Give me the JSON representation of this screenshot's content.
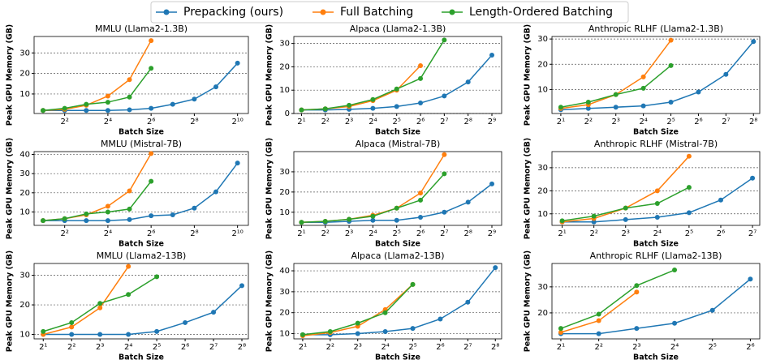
{
  "chart_data": [
    {
      "type": "line",
      "title": "MMLU (Llama2-1.3B)",
      "xlabel": "Batch Size",
      "ylabel": "Peak GPU Memory (GB)",
      "log_x": true,
      "log_base": 2,
      "grid": true,
      "xlim": [
        1.5,
        1450
      ],
      "ylim": [
        0.5,
        38
      ],
      "xticks": [
        {
          "value": 4,
          "label": "2²"
        },
        {
          "value": 16,
          "label": "2⁴"
        },
        {
          "value": 64,
          "label": "2⁶"
        },
        {
          "value": 256,
          "label": "2⁸"
        },
        {
          "value": 1024,
          "label": "2¹⁰"
        }
      ],
      "yticks": [
        10,
        20,
        30
      ],
      "series": [
        {
          "name": "Prepacking (ours)",
          "color": "#1f77b4",
          "x": [
            2,
            4,
            8,
            16,
            32,
            64,
            128,
            256,
            512,
            1024
          ],
          "values": [
            2,
            2,
            2,
            2,
            2.3,
            3,
            5,
            7.5,
            13.5,
            25
          ]
        },
        {
          "name": "Full Batching",
          "color": "#ff7f0e",
          "x": [
            2,
            4,
            8,
            16,
            32,
            64
          ],
          "values": [
            2,
            2.5,
            4.5,
            9,
            17,
            36
          ]
        },
        {
          "name": "Length-Ordered Batching",
          "color": "#2ca02c",
          "x": [
            2,
            4,
            8,
            16,
            32,
            64
          ],
          "values": [
            2,
            3,
            5,
            6,
            8.5,
            22.5
          ]
        }
      ]
    },
    {
      "type": "line",
      "title": "Alpaca (Llama2-1.3B)",
      "xlabel": "Batch Size",
      "ylabel": "Peak GPU Memory (GB)",
      "log_x": true,
      "log_base": 2,
      "grid": true,
      "xlim": [
        1.6,
        680
      ],
      "ylim": [
        0,
        33
      ],
      "xticks": [
        {
          "value": 2,
          "label": "2¹"
        },
        {
          "value": 4,
          "label": "2²"
        },
        {
          "value": 8,
          "label": "2³"
        },
        {
          "value": 16,
          "label": "2⁴"
        },
        {
          "value": 32,
          "label": "2⁵"
        },
        {
          "value": 64,
          "label": "2⁶"
        },
        {
          "value": 128,
          "label": "2⁷"
        },
        {
          "value": 256,
          "label": "2⁸"
        },
        {
          "value": 512,
          "label": "2⁹"
        }
      ],
      "yticks": [
        0,
        10,
        20,
        30
      ],
      "series": [
        {
          "name": "Prepacking (ours)",
          "color": "#1f77b4",
          "x": [
            2,
            4,
            8,
            16,
            32,
            64,
            128,
            256,
            512
          ],
          "values": [
            1.5,
            1.5,
            1.8,
            2.2,
            3,
            4.5,
            7.5,
            13.5,
            25
          ]
        },
        {
          "name": "Full Batching",
          "color": "#ff7f0e",
          "x": [
            2,
            4,
            8,
            16,
            32,
            64
          ],
          "values": [
            1.5,
            2,
            3,
            5.5,
            10,
            20.5
          ]
        },
        {
          "name": "Length-Ordered Batching",
          "color": "#2ca02c",
          "x": [
            2,
            4,
            8,
            16,
            32,
            64,
            128
          ],
          "values": [
            1.5,
            2,
            3.5,
            6,
            10.5,
            15,
            31.5
          ]
        }
      ]
    },
    {
      "type": "line",
      "title": "Anthropic RLHF (Llama2-1.3B)",
      "xlabel": "Batch Size",
      "ylabel": "Peak GPU Memory (GB)",
      "log_x": true,
      "log_base": 2,
      "grid": true,
      "xlim": [
        1.6,
        300
      ],
      "ylim": [
        0.5,
        31
      ],
      "xticks": [
        {
          "value": 2,
          "label": "2¹"
        },
        {
          "value": 4,
          "label": "2²"
        },
        {
          "value": 8,
          "label": "2³"
        },
        {
          "value": 16,
          "label": "2⁴"
        },
        {
          "value": 32,
          "label": "2⁵"
        },
        {
          "value": 64,
          "label": "2⁶"
        },
        {
          "value": 128,
          "label": "2⁷"
        },
        {
          "value": 256,
          "label": "2⁸"
        }
      ],
      "yticks": [
        10,
        20,
        30
      ],
      "series": [
        {
          "name": "Prepacking (ours)",
          "color": "#1f77b4",
          "x": [
            2,
            4,
            8,
            16,
            32,
            64,
            128,
            256
          ],
          "values": [
            2,
            2.5,
            3,
            3.5,
            5,
            9,
            16,
            29
          ]
        },
        {
          "name": "Full Batching",
          "color": "#ff7f0e",
          "x": [
            2,
            4,
            8,
            16,
            32
          ],
          "values": [
            2.5,
            4,
            8,
            15,
            29.5
          ]
        },
        {
          "name": "Length-Ordered Batching",
          "color": "#2ca02c",
          "x": [
            2,
            4,
            8,
            16,
            32
          ],
          "values": [
            3,
            5,
            8,
            10.5,
            19.5
          ]
        }
      ]
    },
    {
      "type": "line",
      "title": "MMLU (Mistral-7B)",
      "xlabel": "Batch Size",
      "ylabel": "Peak GPU Memory (GB)",
      "log_x": true,
      "log_base": 2,
      "grid": true,
      "xlim": [
        1.5,
        1450
      ],
      "ylim": [
        3,
        41.5
      ],
      "xticks": [
        {
          "value": 4,
          "label": "2²"
        },
        {
          "value": 16,
          "label": "2⁴"
        },
        {
          "value": 64,
          "label": "2⁶"
        },
        {
          "value": 256,
          "label": "2⁸"
        },
        {
          "value": 1024,
          "label": "2¹⁰"
        }
      ],
      "yticks": [
        10,
        20,
        30,
        40
      ],
      "series": [
        {
          "name": "Prepacking (ours)",
          "color": "#1f77b4",
          "x": [
            2,
            4,
            8,
            16,
            32,
            64,
            128,
            256,
            512,
            1024
          ],
          "values": [
            5.5,
            5.5,
            5.5,
            5.5,
            6,
            8,
            8.5,
            12,
            20.5,
            35.5
          ]
        },
        {
          "name": "Full Batching",
          "color": "#ff7f0e",
          "x": [
            2,
            4,
            8,
            16,
            32,
            64
          ],
          "values": [
            5.5,
            6.5,
            8.5,
            13,
            21,
            40.5
          ]
        },
        {
          "name": "Length-Ordered Batching",
          "color": "#2ca02c",
          "x": [
            2,
            4,
            8,
            16,
            32,
            64
          ],
          "values": [
            5.5,
            6.5,
            9,
            10,
            11.5,
            26
          ]
        }
      ]
    },
    {
      "type": "line",
      "title": "Alpaca (Mistral-7B)",
      "xlabel": "Batch Size",
      "ylabel": "Peak GPU Memory (GB)",
      "log_x": true,
      "log_base": 2,
      "grid": true,
      "xlim": [
        1.6,
        680
      ],
      "ylim": [
        3.5,
        40
      ],
      "xticks": [
        {
          "value": 2,
          "label": "2¹"
        },
        {
          "value": 4,
          "label": "2²"
        },
        {
          "value": 8,
          "label": "2³"
        },
        {
          "value": 16,
          "label": "2⁴"
        },
        {
          "value": 32,
          "label": "2⁵"
        },
        {
          "value": 64,
          "label": "2⁶"
        },
        {
          "value": 128,
          "label": "2⁷"
        },
        {
          "value": 256,
          "label": "2⁸"
        },
        {
          "value": 512,
          "label": "2⁹"
        }
      ],
      "yticks": [
        10,
        20,
        30
      ],
      "series": [
        {
          "name": "Prepacking (ours)",
          "color": "#1f77b4",
          "x": [
            2,
            4,
            8,
            16,
            32,
            64,
            128,
            256,
            512
          ],
          "values": [
            5,
            5,
            5.5,
            6,
            6,
            7.5,
            10,
            15,
            24
          ]
        },
        {
          "name": "Full Batching",
          "color": "#ff7f0e",
          "x": [
            2,
            4,
            8,
            16,
            32,
            64,
            128
          ],
          "values": [
            5,
            5.5,
            6.5,
            8.5,
            12,
            19.5,
            38.5
          ]
        },
        {
          "name": "Length-Ordered Batching",
          "color": "#2ca02c",
          "x": [
            2,
            4,
            8,
            16,
            32,
            64,
            128
          ],
          "values": [
            5,
            5.5,
            6.5,
            8,
            12,
            16,
            29
          ]
        }
      ]
    },
    {
      "type": "line",
      "title": "Anthropic RLHF (Mistral-7B)",
      "xlabel": "Batch Size",
      "ylabel": "Peak GPU Memory (GB)",
      "log_x": true,
      "log_base": 2,
      "grid": true,
      "xlim": [
        1.6,
        150
      ],
      "ylim": [
        5,
        37
      ],
      "xticks": [
        {
          "value": 2,
          "label": "2¹"
        },
        {
          "value": 4,
          "label": "2²"
        },
        {
          "value": 8,
          "label": "2³"
        },
        {
          "value": 16,
          "label": "2⁴"
        },
        {
          "value": 32,
          "label": "2⁵"
        },
        {
          "value": 64,
          "label": "2⁶"
        },
        {
          "value": 128,
          "label": "2⁷"
        }
      ],
      "yticks": [
        10,
        20,
        30
      ],
      "series": [
        {
          "name": "Prepacking (ours)",
          "color": "#1f77b4",
          "x": [
            2,
            4,
            8,
            16,
            32,
            64,
            128
          ],
          "values": [
            6.5,
            6.5,
            7.5,
            8.5,
            10.5,
            16,
            25.5
          ]
        },
        {
          "name": "Full Batching",
          "color": "#ff7f0e",
          "x": [
            2,
            4,
            8,
            16,
            32
          ],
          "values": [
            6.5,
            8,
            12.5,
            20,
            35
          ]
        },
        {
          "name": "Length-Ordered Batching",
          "color": "#2ca02c",
          "x": [
            2,
            4,
            8,
            16,
            32
          ],
          "values": [
            7,
            9,
            12.5,
            14.5,
            21.5
          ]
        }
      ]
    },
    {
      "type": "line",
      "title": "MMLU (Llama2-13B)",
      "xlabel": "Batch Size",
      "ylabel": "Peak GPU Memory (GB)",
      "log_x": true,
      "log_base": 2,
      "grid": true,
      "xlim": [
        1.6,
        300
      ],
      "ylim": [
        8.5,
        34
      ],
      "xticks": [
        {
          "value": 2,
          "label": "2¹"
        },
        {
          "value": 4,
          "label": "2²"
        },
        {
          "value": 8,
          "label": "2³"
        },
        {
          "value": 16,
          "label": "2⁴"
        },
        {
          "value": 32,
          "label": "2⁵"
        },
        {
          "value": 64,
          "label": "2⁶"
        },
        {
          "value": 128,
          "label": "2⁷"
        },
        {
          "value": 256,
          "label": "2⁸"
        }
      ],
      "yticks": [
        10,
        20,
        30
      ],
      "series": [
        {
          "name": "Prepacking (ours)",
          "color": "#1f77b4",
          "x": [
            2,
            4,
            8,
            16,
            32,
            64,
            128,
            256
          ],
          "values": [
            10,
            10,
            10,
            10,
            11,
            14,
            17.5,
            26.5
          ]
        },
        {
          "name": "Full Batching",
          "color": "#ff7f0e",
          "x": [
            2,
            4,
            8,
            16
          ],
          "values": [
            10,
            12.5,
            19,
            33
          ]
        },
        {
          "name": "Length-Ordered Batching",
          "color": "#2ca02c",
          "x": [
            2,
            4,
            8,
            16,
            32
          ],
          "values": [
            11,
            14,
            20.5,
            23.5,
            29.5
          ]
        }
      ]
    },
    {
      "type": "line",
      "title": "Alpaca (Llama2-13B)",
      "xlabel": "Batch Size",
      "ylabel": "Peak GPU Memory (GB)",
      "log_x": true,
      "log_base": 2,
      "grid": true,
      "xlim": [
        1.6,
        300
      ],
      "ylim": [
        7.5,
        43.5
      ],
      "xticks": [
        {
          "value": 2,
          "label": "2¹"
        },
        {
          "value": 4,
          "label": "2²"
        },
        {
          "value": 8,
          "label": "2³"
        },
        {
          "value": 16,
          "label": "2⁴"
        },
        {
          "value": 32,
          "label": "2⁵"
        },
        {
          "value": 64,
          "label": "2⁶"
        },
        {
          "value": 128,
          "label": "2⁷"
        },
        {
          "value": 256,
          "label": "2⁸"
        }
      ],
      "yticks": [
        10,
        20,
        30,
        40
      ],
      "series": [
        {
          "name": "Prepacking (ours)",
          "color": "#1f77b4",
          "x": [
            2,
            4,
            8,
            16,
            32,
            64,
            128,
            256
          ],
          "values": [
            9.5,
            9.5,
            10,
            11,
            12.5,
            17,
            25,
            41.5
          ]
        },
        {
          "name": "Full Batching",
          "color": "#ff7f0e",
          "x": [
            2,
            4,
            8,
            16,
            32
          ],
          "values": [
            9,
            10.5,
            13.5,
            21.5,
            33.5
          ]
        },
        {
          "name": "Length-Ordered Batching",
          "color": "#2ca02c",
          "x": [
            2,
            4,
            8,
            16,
            32
          ],
          "values": [
            9.5,
            11,
            15,
            20,
            33.5
          ]
        }
      ]
    },
    {
      "type": "line",
      "title": "Anthropic RLHF (Llama2-13B)",
      "xlabel": "Batch Size",
      "ylabel": "Peak GPU Memory (GB)",
      "log_x": true,
      "log_base": 2,
      "grid": true,
      "xlim": [
        1.7,
        76
      ],
      "ylim": [
        10,
        39
      ],
      "xticks": [
        {
          "value": 2,
          "label": "2¹"
        },
        {
          "value": 4,
          "label": "2²"
        },
        {
          "value": 8,
          "label": "2³"
        },
        {
          "value": 16,
          "label": "2⁴"
        },
        {
          "value": 32,
          "label": "2⁵"
        },
        {
          "value": 64,
          "label": "2⁶"
        }
      ],
      "yticks": [
        20,
        30
      ],
      "series": [
        {
          "name": "Prepacking (ours)",
          "color": "#1f77b4",
          "x": [
            2,
            4,
            8,
            16,
            32,
            64
          ],
          "values": [
            12,
            12,
            14,
            16,
            21,
            33
          ]
        },
        {
          "name": "Full Batching",
          "color": "#ff7f0e",
          "x": [
            2,
            4,
            8
          ],
          "values": [
            12.5,
            17,
            28
          ]
        },
        {
          "name": "Length-Ordered Batching",
          "color": "#2ca02c",
          "x": [
            2,
            4,
            8,
            16
          ],
          "values": [
            14,
            19.5,
            30.5,
            36.5
          ]
        }
      ]
    }
  ]
}
